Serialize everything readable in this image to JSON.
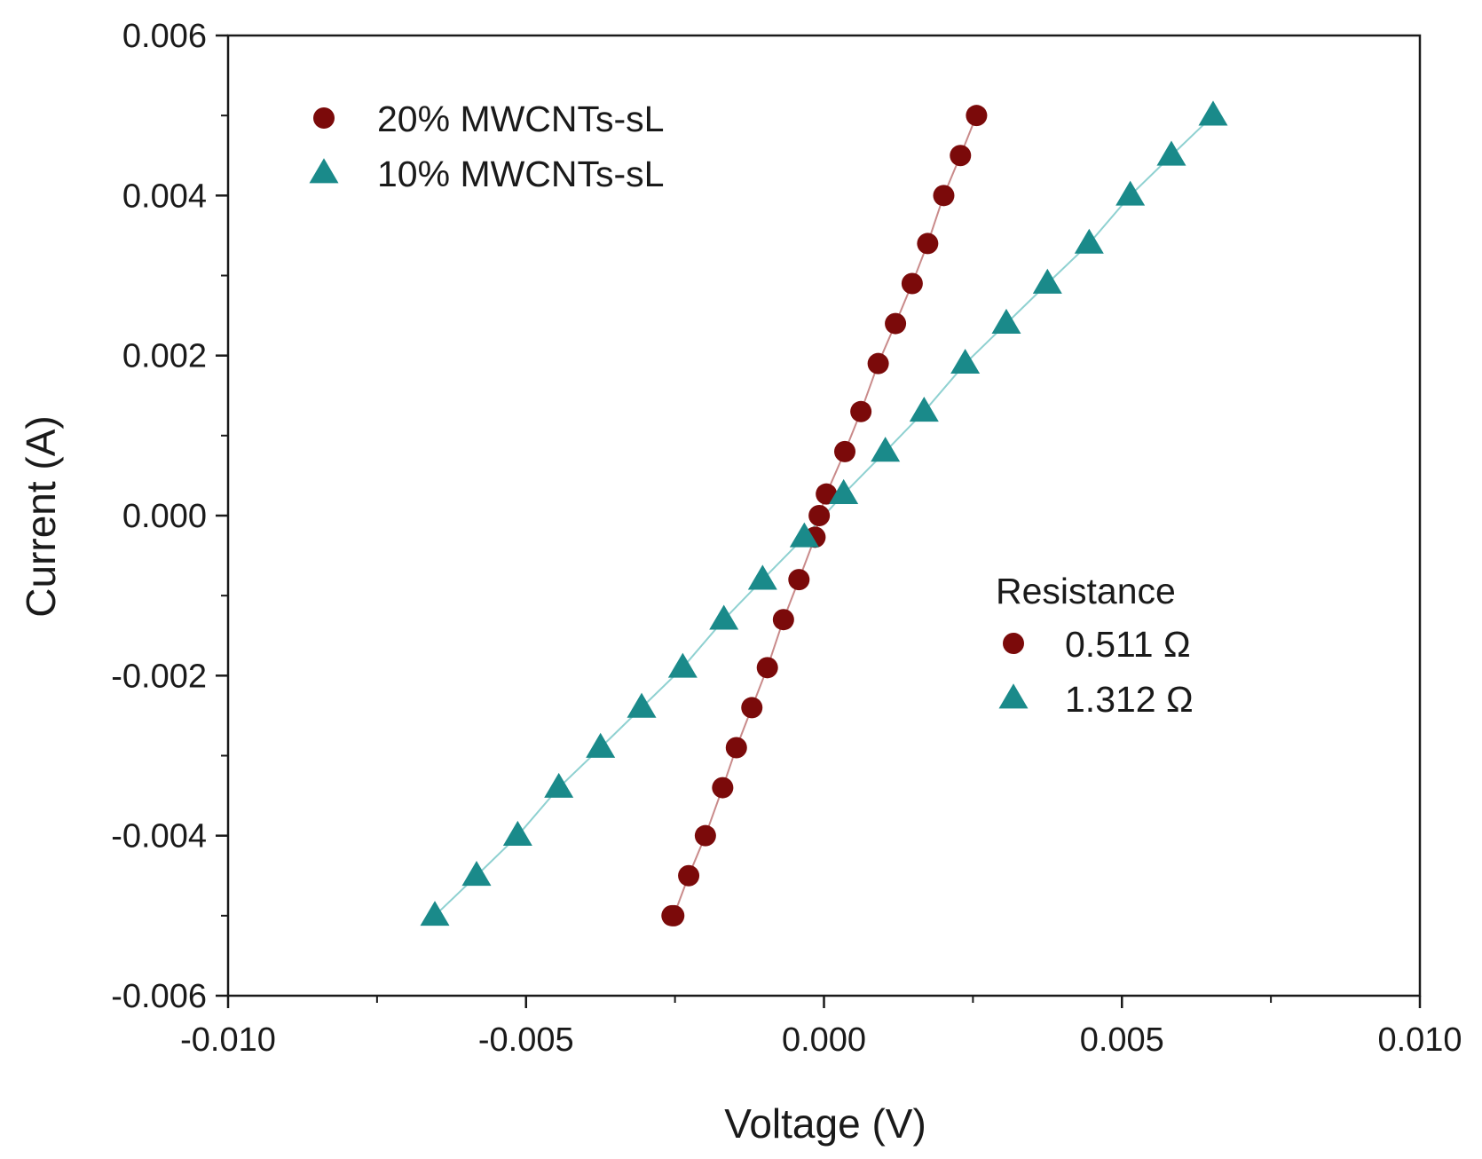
{
  "chart_data": {
    "type": "scatter",
    "title": "",
    "xlabel": "Voltage (V)",
    "ylabel": "Current (A)",
    "xlim": [
      -0.01,
      0.01
    ],
    "ylim": [
      -0.006,
      0.006
    ],
    "xticks": [
      -0.01,
      -0.005,
      0.0,
      0.005,
      0.01
    ],
    "xtick_labels": [
      "-0.010",
      "-0.005",
      "0.000",
      "0.005",
      "0.010"
    ],
    "yticks": [
      -0.006,
      -0.004,
      -0.002,
      0.0,
      0.002,
      0.004,
      0.006
    ],
    "ytick_labels": [
      "-0.006",
      "-0.004",
      "-0.002",
      "0.000",
      "0.002",
      "0.004",
      "0.006"
    ],
    "grid": false,
    "legend_position": "top-left",
    "series": [
      {
        "name": "20% MWCNTs-sL",
        "marker": "circle",
        "color": "#7b0a0a",
        "line_color": "#c98a8a",
        "x": [
          -0.00255,
          -0.00252,
          -0.00227,
          -0.00199,
          -0.0017,
          -0.00147,
          -0.00121,
          -0.00095,
          -0.00068,
          -0.00042,
          -0.00015,
          -8e-05,
          4e-05,
          0.00035,
          0.00062,
          0.00091,
          0.0012,
          0.00148,
          0.00174,
          0.00201,
          0.00229,
          0.00256
        ],
        "y": [
          -0.005,
          -0.005,
          -0.0045,
          -0.004,
          -0.0034,
          -0.0029,
          -0.0024,
          -0.0019,
          -0.0013,
          -0.0008,
          -0.00027,
          0.0,
          0.00027,
          0.0008,
          0.0013,
          0.0019,
          0.0024,
          0.0029,
          0.0034,
          0.004,
          0.0045,
          0.005
        ]
      },
      {
        "name": "10% MWCNTs-sL",
        "marker": "triangle",
        "color": "#1a8a8a",
        "line_color": "#8fd1d1",
        "x": [
          -0.00653,
          -0.00583,
          -0.00514,
          -0.00445,
          -0.00375,
          -0.00306,
          -0.00237,
          -0.00168,
          -0.00103,
          -0.00033,
          0.00033,
          0.00103,
          0.00168,
          0.00237,
          0.00306,
          0.00375,
          0.00445,
          0.00514,
          0.00583,
          0.00653
        ],
        "y": [
          -0.005,
          -0.0045,
          -0.004,
          -0.0034,
          -0.0029,
          -0.0024,
          -0.0019,
          -0.0013,
          -0.0008,
          -0.00027,
          0.00027,
          0.0008,
          0.0013,
          0.0019,
          0.0024,
          0.0029,
          0.0034,
          0.004,
          0.0045,
          0.005
        ]
      }
    ],
    "annotation": {
      "title": "Resistance",
      "entries": [
        {
          "label": "0.511 Ω",
          "marker": "circle",
          "color": "#7b0a0a"
        },
        {
          "label": "1.312 Ω",
          "marker": "triangle",
          "color": "#1a8a8a"
        }
      ]
    }
  }
}
